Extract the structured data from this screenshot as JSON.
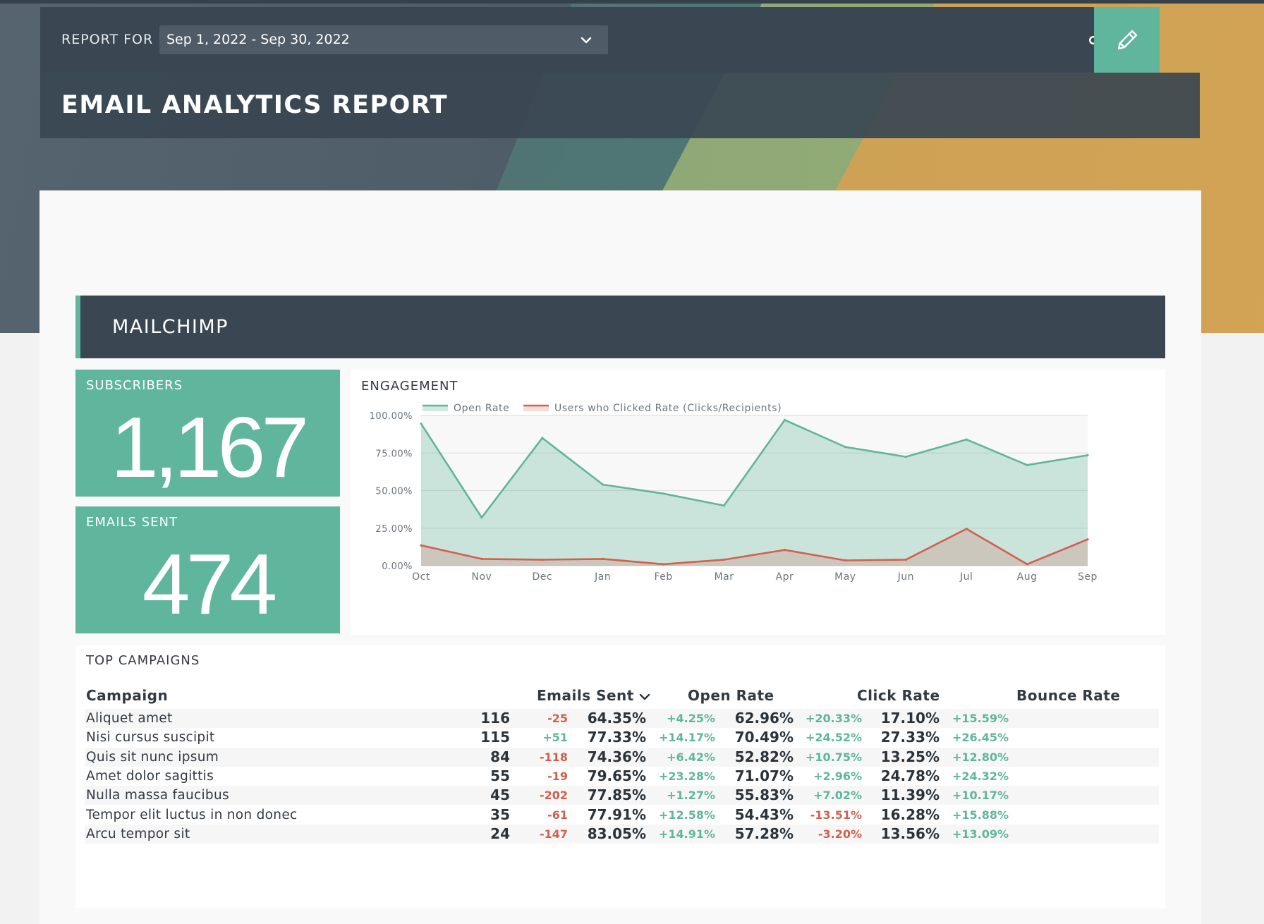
{
  "header": {
    "report_for_label": "REPORT FOR",
    "date_range": "Sep 1, 2022 - Sep 30, 2022",
    "title": "EMAIL ANALYTICS REPORT"
  },
  "section": {
    "title": "MAILCHIMP"
  },
  "kpis": {
    "subscribers": {
      "label": "SUBSCRIBERS",
      "value": "1,167"
    },
    "emails_sent": {
      "label": "EMAILS SENT",
      "value": "474"
    }
  },
  "engagement": {
    "title": "ENGAGEMENT"
  },
  "chart_data": {
    "type": "area",
    "title": "ENGAGEMENT",
    "categories": [
      "Oct",
      "Nov",
      "Dec",
      "Jan",
      "Feb",
      "Mar",
      "Apr",
      "May",
      "Jun",
      "Jul",
      "Aug",
      "Sep"
    ],
    "series": [
      {
        "name": "Open Rate",
        "color": "#5fb69d",
        "values": [
          94.5,
          32,
          85,
          54,
          48,
          40,
          97,
          79,
          72.5,
          84,
          67,
          73.5
        ]
      },
      {
        "name": "Users who Clicked Rate (Clicks/Recipients)",
        "color": "#d1604e",
        "values": [
          13.5,
          4.5,
          4,
          4.5,
          1,
          4,
          10.5,
          3.5,
          4,
          24.5,
          1,
          17.5
        ]
      }
    ],
    "y_ticks": [
      "0.00%",
      "25.00%",
      "50.00%",
      "75.00%",
      "100.00%"
    ],
    "ylim": [
      0,
      100
    ],
    "legend": "top-left",
    "grid": true
  },
  "campaigns": {
    "title": "TOP CAMPAIGNS",
    "headers": {
      "campaign": "Campaign",
      "emails_sent": "Emails Sent",
      "open_rate": "Open Rate",
      "click_rate": "Click Rate",
      "bounce_rate": "Bounce Rate"
    },
    "rows": [
      {
        "campaign": "Aliquet amet",
        "sent": "116",
        "sent_delta": "-25",
        "open": "64.35%",
        "open_delta": "+4.25%",
        "click": "62.96%",
        "click_delta": "+20.33%",
        "bounce": "17.10%",
        "bounce_delta": "+15.59%"
      },
      {
        "campaign": "Nisi cursus suscipit",
        "sent": "115",
        "sent_delta": "+51",
        "open": "77.33%",
        "open_delta": "+14.17%",
        "click": "70.49%",
        "click_delta": "+24.52%",
        "bounce": "27.33%",
        "bounce_delta": "+26.45%"
      },
      {
        "campaign": "Quis sit nunc ipsum",
        "sent": "84",
        "sent_delta": "-118",
        "open": "74.36%",
        "open_delta": "+6.42%",
        "click": "52.82%",
        "click_delta": "+10.75%",
        "bounce": "13.25%",
        "bounce_delta": "+12.80%"
      },
      {
        "campaign": "Amet dolor sagittis",
        "sent": "55",
        "sent_delta": "-19",
        "open": "79.65%",
        "open_delta": "+23.28%",
        "click": "71.07%",
        "click_delta": "+2.96%",
        "bounce": "24.78%",
        "bounce_delta": "+24.32%"
      },
      {
        "campaign": "Nulla massa faucibus",
        "sent": "45",
        "sent_delta": "-202",
        "open": "77.85%",
        "open_delta": "+1.27%",
        "click": "55.83%",
        "click_delta": "+7.02%",
        "bounce": "11.39%",
        "bounce_delta": "+10.17%"
      },
      {
        "campaign": "Tempor elit luctus in non donec",
        "sent": "35",
        "sent_delta": "-61",
        "open": "77.91%",
        "open_delta": "+12.58%",
        "click": "54.43%",
        "click_delta": "-13.51%",
        "bounce": "16.28%",
        "bounce_delta": "+15.88%"
      },
      {
        "campaign": "Arcu tempor sit",
        "sent": "24",
        "sent_delta": "-147",
        "open": "83.05%",
        "open_delta": "+14.91%",
        "click": "57.28%",
        "click_delta": "-3.20%",
        "bounce": "13.56%",
        "bounce_delta": "+13.09%"
      }
    ]
  },
  "icons": {
    "date_dropdown": "chevron-down-icon",
    "share": "share-icon",
    "edit": "pencil-icon",
    "sort": "chevron-down-icon"
  },
  "colors": {
    "accent": "#5fb69d",
    "dark": "#3a4752",
    "negative": "#d1604e"
  }
}
